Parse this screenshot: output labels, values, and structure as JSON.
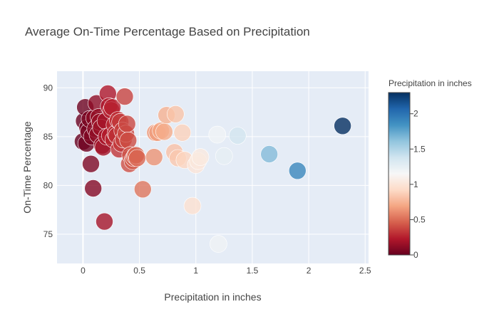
{
  "chart_data": {
    "type": "scatter",
    "title": "Average On-Time Percentage Based on Precipitation",
    "xlabel": "Precipitation in inches",
    "ylabel": "On-Time Percentage",
    "xlim": [
      -0.23,
      2.53
    ],
    "ylim": [
      72,
      91.7
    ],
    "x_ticks": [
      0,
      0.5,
      1,
      1.5,
      2,
      2.5
    ],
    "x_tick_labels": [
      "0",
      "0.5",
      "1",
      "1.5",
      "2",
      "2.5"
    ],
    "y_ticks": [
      75,
      80,
      85,
      90
    ],
    "y_tick_labels": [
      "75",
      "80",
      "85",
      "90"
    ],
    "grid": true,
    "background": "#e5ecf6",
    "marker_opacity": 0.8,
    "colorbar": {
      "title": "Precipitation in inches",
      "colorscale": "RdBu",
      "range": [
        0,
        2.3
      ],
      "ticks": [
        0,
        0.5,
        1,
        1.5,
        2
      ],
      "tick_labels": [
        "0",
        "0.5",
        "1",
        "1.5",
        "2"
      ]
    },
    "x": [
      0.0,
      0.01,
      0.02,
      0.03,
      0.04,
      0.05,
      0.06,
      0.07,
      0.08,
      0.09,
      0.1,
      0.11,
      0.12,
      0.13,
      0.14,
      0.15,
      0.16,
      0.17,
      0.18,
      0.19,
      0.2,
      0.21,
      0.22,
      0.23,
      0.24,
      0.25,
      0.26,
      0.27,
      0.28,
      0.29,
      0.3,
      0.31,
      0.32,
      0.33,
      0.34,
      0.35,
      0.36,
      0.37,
      0.38,
      0.39,
      0.4,
      0.41,
      0.42,
      0.44,
      0.45,
      0.46,
      0.47,
      0.48,
      0.53,
      0.63,
      0.64,
      0.66,
      0.69,
      0.72,
      0.74,
      0.81,
      0.82,
      0.84,
      0.88,
      0.9,
      0.97,
      1.0,
      1.02,
      1.04,
      1.19,
      1.2,
      1.25,
      1.37,
      1.65,
      1.9,
      2.3
    ],
    "y": [
      84.5,
      86.6,
      88.0,
      84.3,
      85.9,
      85.5,
      86.8,
      82.2,
      85.0,
      79.7,
      86.9,
      85.8,
      88.4,
      85.2,
      87.0,
      86.5,
      85.9,
      84.1,
      83.9,
      76.3,
      86.6,
      85.0,
      89.4,
      88.1,
      85.1,
      87.7,
      88.0,
      84.7,
      86.2,
      85.3,
      85.1,
      86.7,
      83.7,
      86.5,
      84.3,
      85.6,
      84.7,
      89.1,
      85.3,
      86.3,
      84.6,
      82.2,
      83.1,
      82.5,
      82.8,
      83.0,
      83.1,
      82.8,
      79.6,
      82.9,
      85.4,
      85.4,
      85.6,
      85.5,
      87.2,
      83.4,
      87.3,
      82.8,
      85.4,
      82.6,
      77.9,
      82.1,
      82.5,
      82.9,
      85.2,
      74.0,
      83.0,
      85.1,
      83.2,
      81.5,
      86.1
    ]
  }
}
